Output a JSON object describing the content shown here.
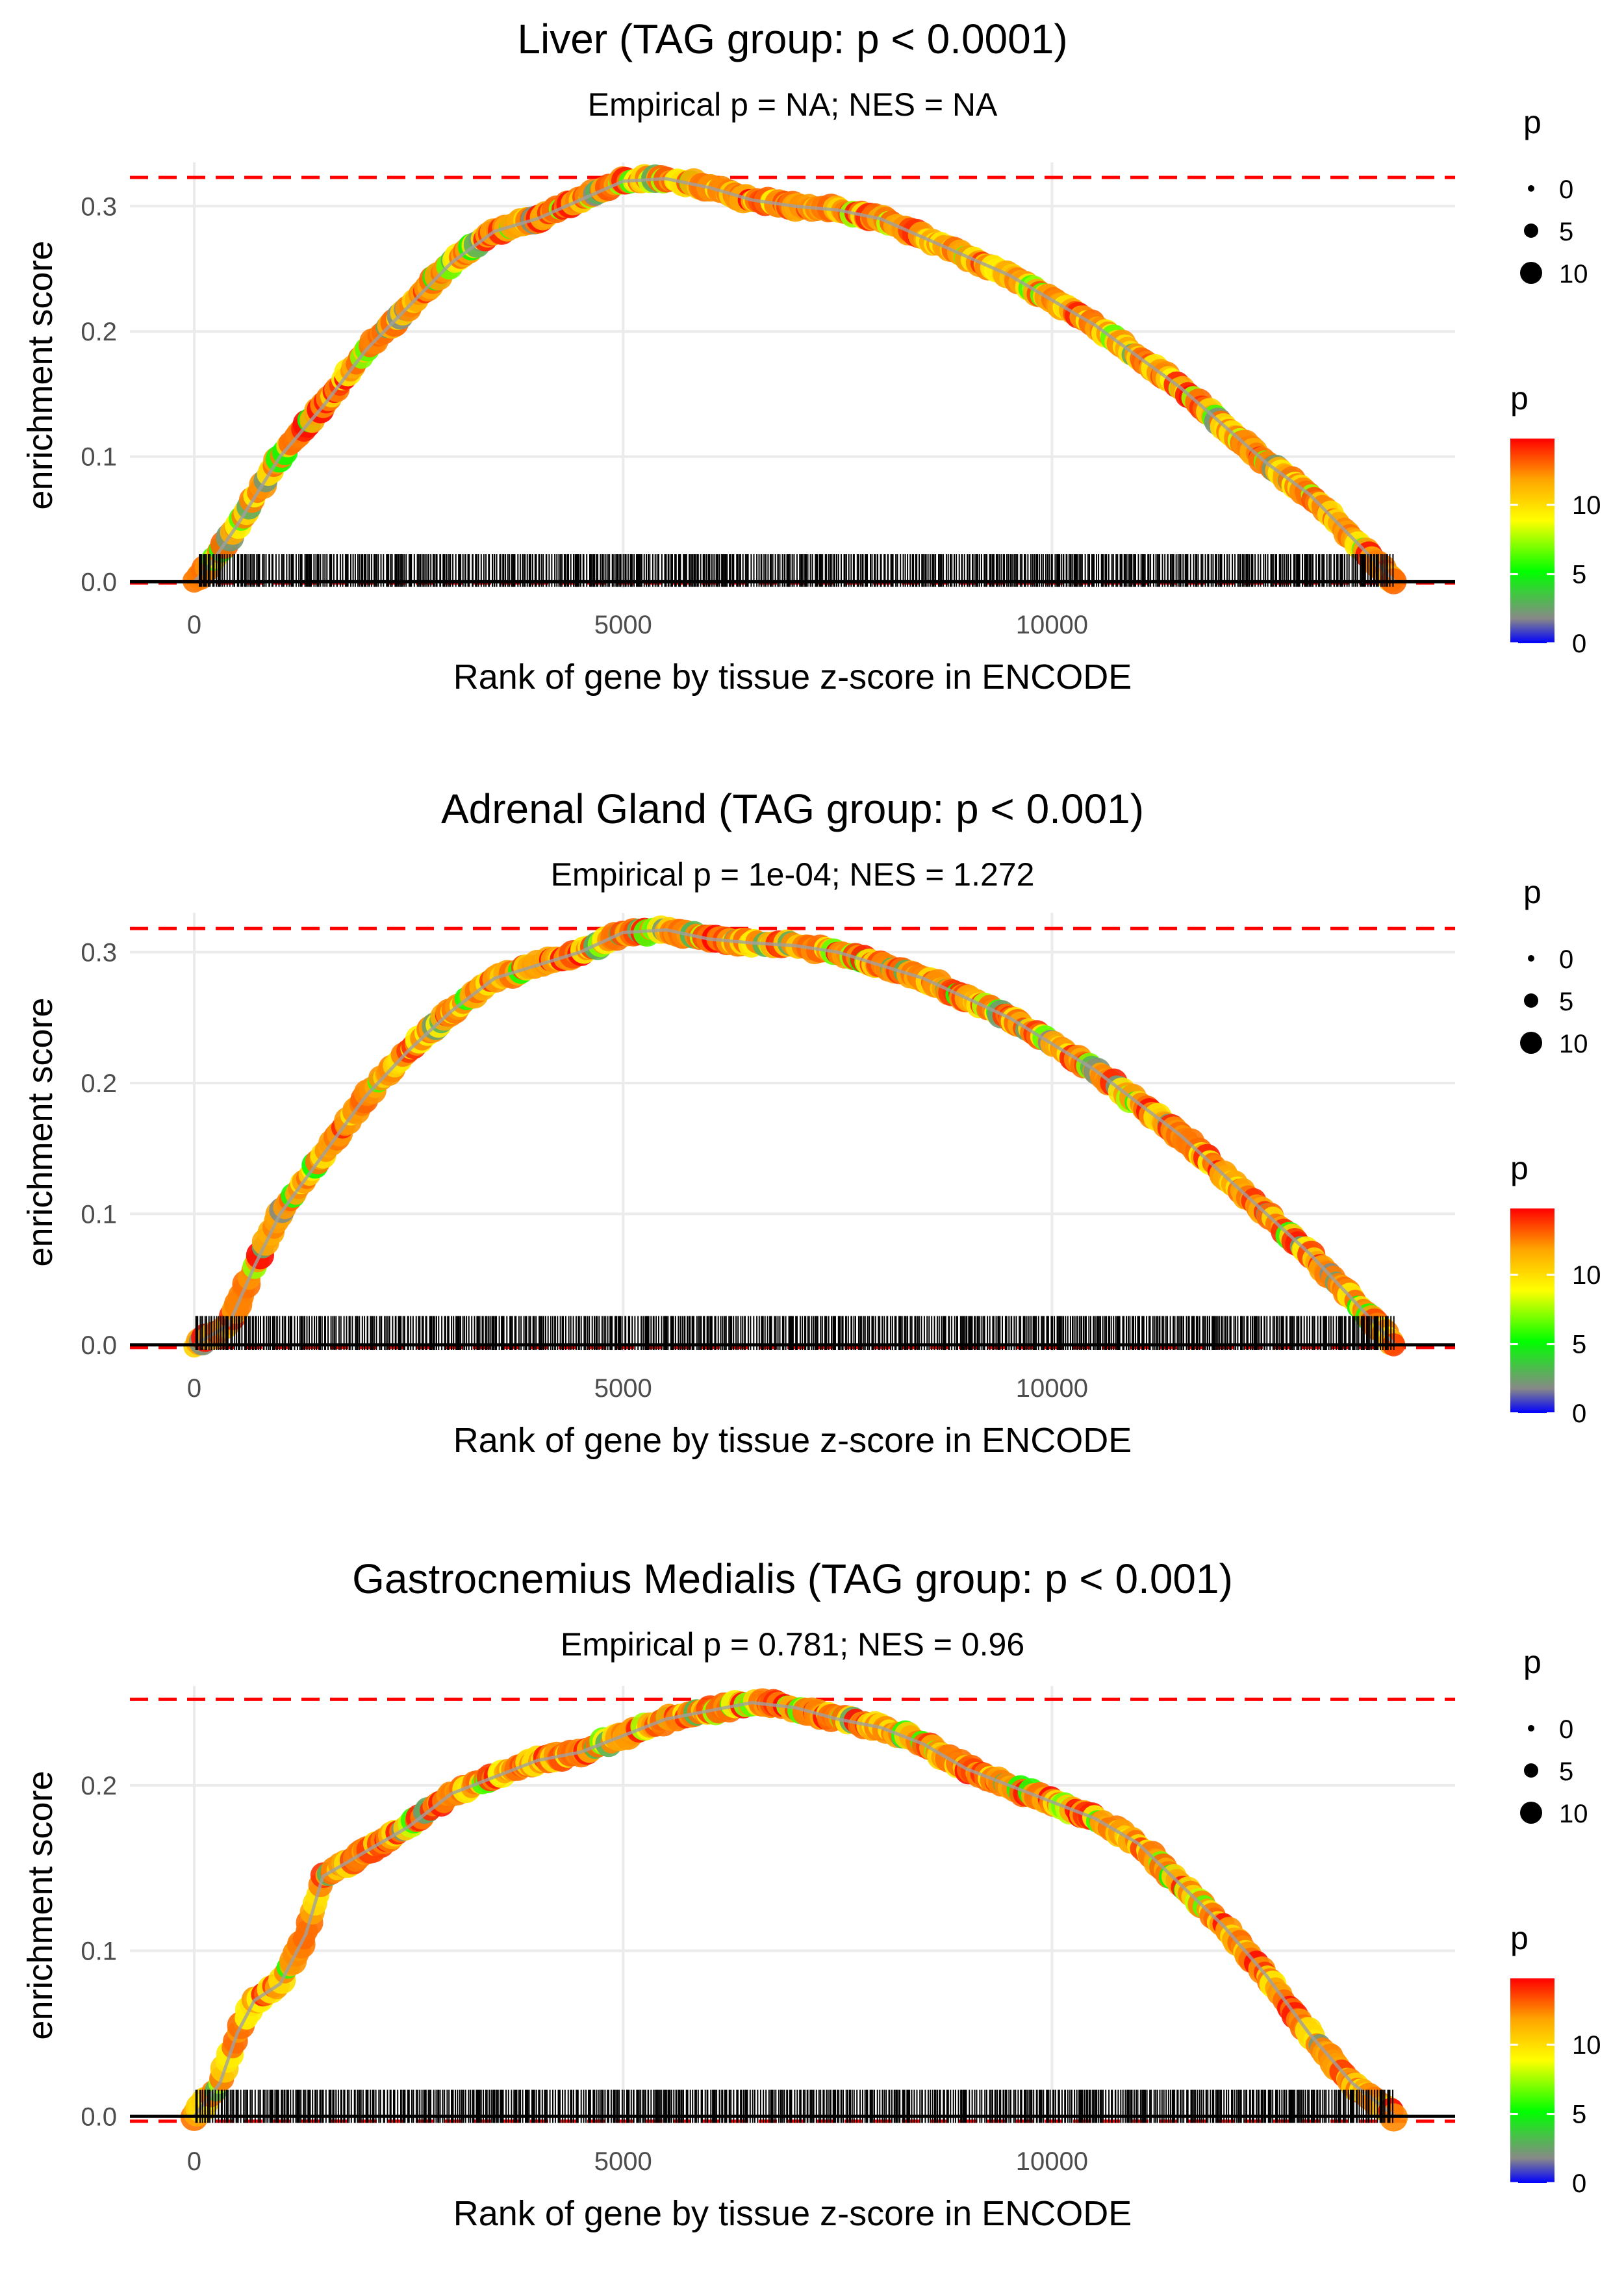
{
  "colors": {
    "grid": "#ebebeb",
    "axis_text": "#4d4d4d",
    "text": "#000000",
    "ref_line": "#ff0000",
    "baseline": "#000000",
    "gradient": [
      "#0000ff",
      "#888888",
      "#00ff00",
      "#ffff00",
      "#ffa500",
      "#ff0000"
    ]
  },
  "chart_data": [
    {
      "type": "scatter",
      "title": "Liver (TAG group: p < 0.0001)",
      "subtitle": "Empirical p = NA; NES = NA",
      "xlabel": "Rank of gene by tissue z-score in ENCODE",
      "ylabel": "enrichment score",
      "xlim": [
        -750,
        14700
      ],
      "ylim": [
        -0.005,
        0.335
      ],
      "x_ticks": [
        0,
        5000,
        10000
      ],
      "x_tick_labels": [
        "0",
        "5000",
        "10000"
      ],
      "y_ticks": [
        0.0,
        0.1,
        0.2,
        0.3
      ],
      "y_tick_labels": [
        "0.0",
        "0.1",
        "0.2",
        "0.3"
      ],
      "max_es": 0.323,
      "min_es": -0.001,
      "n_genes": 14000,
      "curve": [
        [
          0,
          0
        ],
        [
          200,
          0.015
        ],
        [
          500,
          0.045
        ],
        [
          1000,
          0.1
        ],
        [
          1500,
          0.14
        ],
        [
          2000,
          0.185
        ],
        [
          2500,
          0.22
        ],
        [
          3000,
          0.255
        ],
        [
          3500,
          0.28
        ],
        [
          4000,
          0.29
        ],
        [
          4500,
          0.305
        ],
        [
          5000,
          0.32
        ],
        [
          5500,
          0.322
        ],
        [
          6000,
          0.315
        ],
        [
          6500,
          0.305
        ],
        [
          7000,
          0.3
        ],
        [
          7500,
          0.297
        ],
        [
          8000,
          0.29
        ],
        [
          8500,
          0.275
        ],
        [
          9000,
          0.26
        ],
        [
          9500,
          0.245
        ],
        [
          10000,
          0.225
        ],
        [
          10500,
          0.205
        ],
        [
          11000,
          0.18
        ],
        [
          11500,
          0.155
        ],
        [
          12000,
          0.125
        ],
        [
          12500,
          0.095
        ],
        [
          13000,
          0.07
        ],
        [
          13500,
          0.035
        ],
        [
          14000,
          0
        ]
      ],
      "rug_range": [
        0,
        0.022
      ],
      "size_legend": {
        "title": "p",
        "labels": [
          "0",
          "5",
          "10"
        ]
      },
      "color_legend": {
        "title": "p",
        "labels": [
          "0",
          "5",
          "10"
        ]
      }
    },
    {
      "type": "scatter",
      "title": "Adrenal Gland (TAG group: p < 0.001)",
      "subtitle": "Empirical p = 1e-04; NES = 1.272",
      "xlabel": "Rank of gene by tissue z-score in ENCODE",
      "ylabel": "enrichment score",
      "xlim": [
        -750,
        14700
      ],
      "ylim": [
        -0.005,
        0.33
      ],
      "x_ticks": [
        0,
        5000,
        10000
      ],
      "x_tick_labels": [
        "0",
        "5000",
        "10000"
      ],
      "y_ticks": [
        0.0,
        0.1,
        0.2,
        0.3
      ],
      "y_tick_labels": [
        "0.0",
        "0.1",
        "0.2",
        "0.3"
      ],
      "max_es": 0.318,
      "min_es": -0.002,
      "n_genes": 14000,
      "curve": [
        [
          0,
          0
        ],
        [
          400,
          0.015
        ],
        [
          700,
          0.06
        ],
        [
          1000,
          0.1
        ],
        [
          1500,
          0.145
        ],
        [
          2000,
          0.19
        ],
        [
          2500,
          0.225
        ],
        [
          3000,
          0.255
        ],
        [
          3500,
          0.28
        ],
        [
          4000,
          0.29
        ],
        [
          4500,
          0.3
        ],
        [
          5000,
          0.315
        ],
        [
          5500,
          0.317
        ],
        [
          6000,
          0.31
        ],
        [
          6500,
          0.307
        ],
        [
          7000,
          0.305
        ],
        [
          7500,
          0.3
        ],
        [
          8000,
          0.29
        ],
        [
          8500,
          0.28
        ],
        [
          9000,
          0.265
        ],
        [
          9500,
          0.25
        ],
        [
          10000,
          0.23
        ],
        [
          10500,
          0.21
        ],
        [
          11000,
          0.185
        ],
        [
          11500,
          0.16
        ],
        [
          12000,
          0.13
        ],
        [
          12500,
          0.1
        ],
        [
          13000,
          0.07
        ],
        [
          13500,
          0.035
        ],
        [
          14000,
          0
        ]
      ],
      "rug_range": [
        0,
        0.022
      ],
      "size_legend": {
        "title": "p",
        "labels": [
          "0",
          "5",
          "10"
        ]
      },
      "color_legend": {
        "title": "p",
        "labels": [
          "0",
          "5",
          "10"
        ]
      }
    },
    {
      "type": "scatter",
      "title": "Gastrocnemius Medialis (TAG group: p < 0.001)",
      "subtitle": "Empirical p = 0.781; NES = 0.96",
      "xlabel": "Rank of gene by tissue z-score in ENCODE",
      "ylabel": "enrichment score",
      "xlim": [
        -750,
        14700
      ],
      "ylim": [
        -0.005,
        0.26
      ],
      "x_ticks": [
        0,
        5000,
        10000
      ],
      "x_tick_labels": [
        "0",
        "5000",
        "10000"
      ],
      "y_ticks": [
        0.0,
        0.1,
        0.2
      ],
      "y_tick_labels": [
        "0.0",
        "0.1",
        "0.2"
      ],
      "max_es": 0.252,
      "min_es": -0.003,
      "n_genes": 14000,
      "curve": [
        [
          0,
          0
        ],
        [
          300,
          0.02
        ],
        [
          500,
          0.05
        ],
        [
          700,
          0.07
        ],
        [
          1000,
          0.08
        ],
        [
          1300,
          0.11
        ],
        [
          1500,
          0.145
        ],
        [
          2000,
          0.16
        ],
        [
          2500,
          0.175
        ],
        [
          3000,
          0.195
        ],
        [
          3500,
          0.205
        ],
        [
          4000,
          0.215
        ],
        [
          4500,
          0.22
        ],
        [
          5000,
          0.23
        ],
        [
          5500,
          0.24
        ],
        [
          6000,
          0.245
        ],
        [
          6500,
          0.25
        ],
        [
          7000,
          0.247
        ],
        [
          7500,
          0.24
        ],
        [
          8000,
          0.235
        ],
        [
          8500,
          0.225
        ],
        [
          9000,
          0.21
        ],
        [
          9500,
          0.2
        ],
        [
          10000,
          0.19
        ],
        [
          10500,
          0.18
        ],
        [
          11000,
          0.165
        ],
        [
          11500,
          0.14
        ],
        [
          12000,
          0.115
        ],
        [
          12500,
          0.085
        ],
        [
          13000,
          0.05
        ],
        [
          13500,
          0.02
        ],
        [
          14000,
          0
        ]
      ],
      "rug_range": [
        0,
        0.016
      ],
      "size_legend": {
        "title": "p",
        "labels": [
          "0",
          "5",
          "10"
        ]
      },
      "color_legend": {
        "title": "p",
        "labels": [
          "0",
          "5",
          "10"
        ]
      }
    }
  ]
}
